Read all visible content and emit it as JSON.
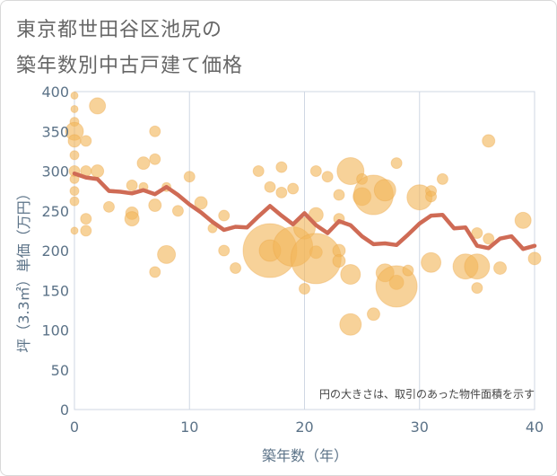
{
  "title": {
    "line1": "東京都世田谷区池尻の",
    "line2": "築年数別中古戸建て価格"
  },
  "chart_data": {
    "type": "scatter",
    "xlabel": "築年数（年）",
    "ylabel": "坪（3.3㎡）単価（万円）",
    "note": "円の大きさは、取引のあった物件面積を示す",
    "xlim": [
      0,
      40
    ],
    "ylim": [
      0,
      400
    ],
    "xticks": [
      0,
      10,
      20,
      30,
      40
    ],
    "yticks": [
      0,
      50,
      100,
      150,
      200,
      250,
      300,
      350,
      400
    ],
    "grid": "vertical",
    "colors": {
      "bubble": "#f2b65a",
      "line": "#cf6b55",
      "grid": "#cfd7e3"
    },
    "points": [
      {
        "x": 0,
        "y": 395,
        "s": 4
      },
      {
        "x": 0,
        "y": 378,
        "s": 4
      },
      {
        "x": 0,
        "y": 362,
        "s": 5
      },
      {
        "x": 0,
        "y": 350,
        "s": 10
      },
      {
        "x": 0,
        "y": 338,
        "s": 7
      },
      {
        "x": 0,
        "y": 320,
        "s": 5
      },
      {
        "x": 0,
        "y": 300,
        "s": 6
      },
      {
        "x": 0,
        "y": 290,
        "s": 5
      },
      {
        "x": 0,
        "y": 275,
        "s": 5
      },
      {
        "x": 0,
        "y": 262,
        "s": 5
      },
      {
        "x": 0,
        "y": 225,
        "s": 4
      },
      {
        "x": 1,
        "y": 338,
        "s": 6
      },
      {
        "x": 1,
        "y": 300,
        "s": 6
      },
      {
        "x": 1,
        "y": 240,
        "s": 6
      },
      {
        "x": 1,
        "y": 225,
        "s": 6
      },
      {
        "x": 2,
        "y": 382,
        "s": 9
      },
      {
        "x": 2,
        "y": 300,
        "s": 7
      },
      {
        "x": 3,
        "y": 255,
        "s": 6
      },
      {
        "x": 5,
        "y": 282,
        "s": 6
      },
      {
        "x": 5,
        "y": 247,
        "s": 7
      },
      {
        "x": 5,
        "y": 240,
        "s": 8
      },
      {
        "x": 6,
        "y": 310,
        "s": 7
      },
      {
        "x": 6,
        "y": 280,
        "s": 5
      },
      {
        "x": 7,
        "y": 350,
        "s": 6
      },
      {
        "x": 7,
        "y": 315,
        "s": 6
      },
      {
        "x": 7,
        "y": 257,
        "s": 7
      },
      {
        "x": 7,
        "y": 173,
        "s": 6
      },
      {
        "x": 8,
        "y": 280,
        "s": 5
      },
      {
        "x": 8,
        "y": 195,
        "s": 10
      },
      {
        "x": 9,
        "y": 250,
        "s": 6
      },
      {
        "x": 10,
        "y": 293,
        "s": 6
      },
      {
        "x": 11,
        "y": 260,
        "s": 7
      },
      {
        "x": 12,
        "y": 228,
        "s": 5
      },
      {
        "x": 13,
        "y": 244,
        "s": 6
      },
      {
        "x": 13,
        "y": 200,
        "s": 6
      },
      {
        "x": 14,
        "y": 178,
        "s": 6
      },
      {
        "x": 16,
        "y": 300,
        "s": 6
      },
      {
        "x": 17,
        "y": 280,
        "s": 6
      },
      {
        "x": 17,
        "y": 200,
        "s": 30
      },
      {
        "x": 17,
        "y": 200,
        "s": 12
      },
      {
        "x": 18,
        "y": 305,
        "s": 6
      },
      {
        "x": 18,
        "y": 273,
        "s": 6
      },
      {
        "x": 19,
        "y": 278,
        "s": 6
      },
      {
        "x": 19,
        "y": 205,
        "s": 22
      },
      {
        "x": 20,
        "y": 228,
        "s": 12
      },
      {
        "x": 20,
        "y": 152,
        "s": 6
      },
      {
        "x": 21,
        "y": 300,
        "s": 6
      },
      {
        "x": 21,
        "y": 245,
        "s": 8
      },
      {
        "x": 21,
        "y": 198,
        "s": 7
      },
      {
        "x": 21,
        "y": 190,
        "s": 28
      },
      {
        "x": 22,
        "y": 293,
        "s": 6
      },
      {
        "x": 23,
        "y": 270,
        "s": 6
      },
      {
        "x": 23,
        "y": 240,
        "s": 6
      },
      {
        "x": 23,
        "y": 200,
        "s": 7
      },
      {
        "x": 23,
        "y": 187,
        "s": 7
      },
      {
        "x": 24,
        "y": 300,
        "s": 15
      },
      {
        "x": 24,
        "y": 170,
        "s": 11
      },
      {
        "x": 24,
        "y": 107,
        "s": 12
      },
      {
        "x": 25,
        "y": 290,
        "s": 6
      },
      {
        "x": 25,
        "y": 268,
        "s": 10
      },
      {
        "x": 26,
        "y": 270,
        "s": 22
      },
      {
        "x": 26,
        "y": 120,
        "s": 7
      },
      {
        "x": 27,
        "y": 276,
        "s": 12
      },
      {
        "x": 27,
        "y": 172,
        "s": 10
      },
      {
        "x": 28,
        "y": 310,
        "s": 6
      },
      {
        "x": 28,
        "y": 160,
        "s": 8
      },
      {
        "x": 28,
        "y": 155,
        "s": 23
      },
      {
        "x": 29,
        "y": 175,
        "s": 6
      },
      {
        "x": 30,
        "y": 267,
        "s": 14
      },
      {
        "x": 31,
        "y": 275,
        "s": 6
      },
      {
        "x": 31,
        "y": 268,
        "s": 6
      },
      {
        "x": 31,
        "y": 185,
        "s": 11
      },
      {
        "x": 32,
        "y": 290,
        "s": 6
      },
      {
        "x": 34,
        "y": 180,
        "s": 14
      },
      {
        "x": 35,
        "y": 180,
        "s": 14
      },
      {
        "x": 35,
        "y": 222,
        "s": 6
      },
      {
        "x": 35,
        "y": 153,
        "s": 6
      },
      {
        "x": 36,
        "y": 338,
        "s": 7
      },
      {
        "x": 36,
        "y": 215,
        "s": 6
      },
      {
        "x": 37,
        "y": 178,
        "s": 7
      },
      {
        "x": 39,
        "y": 238,
        "s": 9
      },
      {
        "x": 40,
        "y": 190,
        "s": 7
      }
    ],
    "line": [
      {
        "x": 0,
        "y": 297
      },
      {
        "x": 1,
        "y": 292
      },
      {
        "x": 2,
        "y": 290
      },
      {
        "x": 3,
        "y": 275
      },
      {
        "x": 4,
        "y": 274
      },
      {
        "x": 5,
        "y": 272
      },
      {
        "x": 6,
        "y": 276
      },
      {
        "x": 7,
        "y": 271
      },
      {
        "x": 8,
        "y": 280
      },
      {
        "x": 9,
        "y": 270
      },
      {
        "x": 10,
        "y": 258
      },
      {
        "x": 11,
        "y": 248
      },
      {
        "x": 12,
        "y": 236
      },
      {
        "x": 13,
        "y": 226
      },
      {
        "x": 14,
        "y": 230
      },
      {
        "x": 15,
        "y": 229
      },
      {
        "x": 16,
        "y": 243
      },
      {
        "x": 17,
        "y": 256
      },
      {
        "x": 18,
        "y": 244
      },
      {
        "x": 19,
        "y": 233
      },
      {
        "x": 20,
        "y": 247
      },
      {
        "x": 21,
        "y": 232
      },
      {
        "x": 22,
        "y": 222
      },
      {
        "x": 23,
        "y": 237
      },
      {
        "x": 24,
        "y": 232
      },
      {
        "x": 25,
        "y": 218
      },
      {
        "x": 26,
        "y": 208
      },
      {
        "x": 27,
        "y": 209
      },
      {
        "x": 28,
        "y": 207
      },
      {
        "x": 29,
        "y": 220
      },
      {
        "x": 30,
        "y": 234
      },
      {
        "x": 31,
        "y": 244
      },
      {
        "x": 32,
        "y": 245
      },
      {
        "x": 33,
        "y": 228
      },
      {
        "x": 34,
        "y": 229
      },
      {
        "x": 35,
        "y": 206
      },
      {
        "x": 36,
        "y": 203
      },
      {
        "x": 37,
        "y": 215
      },
      {
        "x": 38,
        "y": 218
      },
      {
        "x": 39,
        "y": 202
      },
      {
        "x": 40,
        "y": 206
      }
    ]
  }
}
